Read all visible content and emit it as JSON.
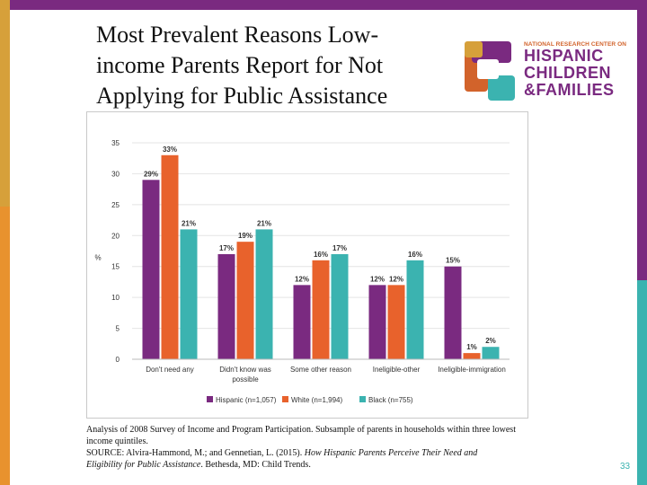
{
  "slide": {
    "title_lines": [
      "Most Prevalent Reasons Low-",
      "income Parents Report for Not",
      "Applying for Public Assistance"
    ],
    "page_number": "33"
  },
  "logo": {
    "tagline": "NATIONAL RESEARCH CENTER ON",
    "line1": "HISPANIC",
    "line2": "CHILDREN",
    "line3": "&FAMILIES",
    "colors": {
      "purple": "#7a2a80",
      "orange": "#d2632b",
      "teal": "#3bb3b0",
      "gold": "#d6a03a"
    }
  },
  "source": {
    "line1": "Analysis of 2008 Survey of Income and Program Participation. Subsample of parents in households within three lowest",
    "line2": "income quintiles.",
    "line3": "SOURCE: Alvira-Hammond, M.; and Gennetian, L. (2015). How Hispanic Parents Perceive Their Need and",
    "line4": "Eligibility for Public Assistance. Bethesda, MD: Child Trends."
  },
  "chart_data": {
    "type": "bar",
    "title": "",
    "xlabel": "",
    "ylabel": "%",
    "ylim": [
      0,
      35
    ],
    "yticks": [
      0,
      5,
      10,
      15,
      20,
      25,
      30,
      35
    ],
    "categories": [
      [
        "Don't need any"
      ],
      [
        "Didn't know was",
        "possible"
      ],
      [
        "Some other reason"
      ],
      [
        "Ineligible-other"
      ],
      [
        "Ineligible-immigration"
      ]
    ],
    "series": [
      {
        "name": "Hispanic (n=1,057)",
        "color": "#7a2a80",
        "values": [
          29,
          17,
          12,
          12,
          15
        ],
        "labels": [
          "29%",
          "17%",
          "12%",
          "12%",
          "15%"
        ]
      },
      {
        "name": "White (n=1,994)",
        "color": "#e8622c",
        "values": [
          33,
          19,
          16,
          12,
          1
        ],
        "labels": [
          "33%",
          "19%",
          "16%",
          "12%",
          "1%"
        ]
      },
      {
        "name": "Black (n=755)",
        "color": "#3bb3b0",
        "values": [
          21,
          21,
          17,
          16,
          2
        ],
        "labels": [
          "21%",
          "21%",
          "17%",
          "16%",
          "2%"
        ]
      }
    ],
    "grid": true,
    "legend": "bottom"
  }
}
